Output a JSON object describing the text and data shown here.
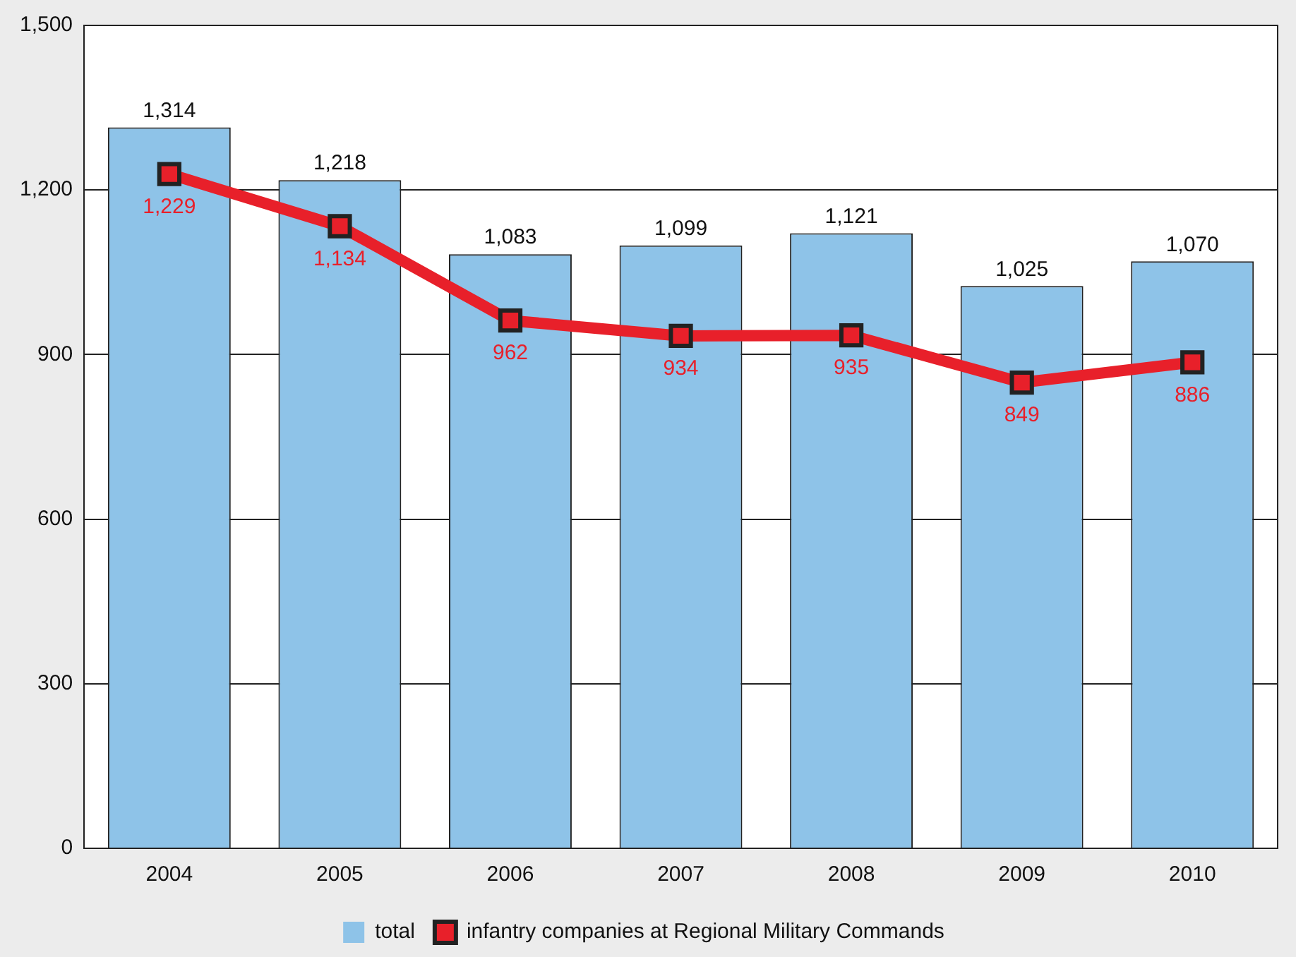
{
  "chart_data": {
    "type": "bar",
    "categories": [
      "2004",
      "2005",
      "2006",
      "2007",
      "2008",
      "2009",
      "2010"
    ],
    "series": [
      {
        "name": "total",
        "color": "#8ec3e8",
        "values": [
          1314,
          1218,
          1083,
          1099,
          1121,
          1025,
          1070
        ],
        "value_labels": [
          "1,314",
          "1,218",
          "1,083",
          "1,099",
          "1,121",
          "1,025",
          "1,070"
        ]
      },
      {
        "name": "infantry companies at Regional Military Commands",
        "type": "line",
        "color": "#e8202a",
        "marker": "square",
        "values": [
          1229,
          1134,
          962,
          934,
          935,
          849,
          886
        ],
        "value_labels": [
          "1,229",
          "1,134",
          "962",
          "934",
          "935",
          "849",
          "886"
        ]
      }
    ],
    "ylim": [
      0,
      1500
    ],
    "yticks": [
      0,
      300,
      600,
      900,
      {
        "value": 1200,
        "label": "1,200"
      },
      {
        "value": 1500,
        "label": "1,500"
      }
    ],
    "grid": "y",
    "legend": "bottom"
  }
}
